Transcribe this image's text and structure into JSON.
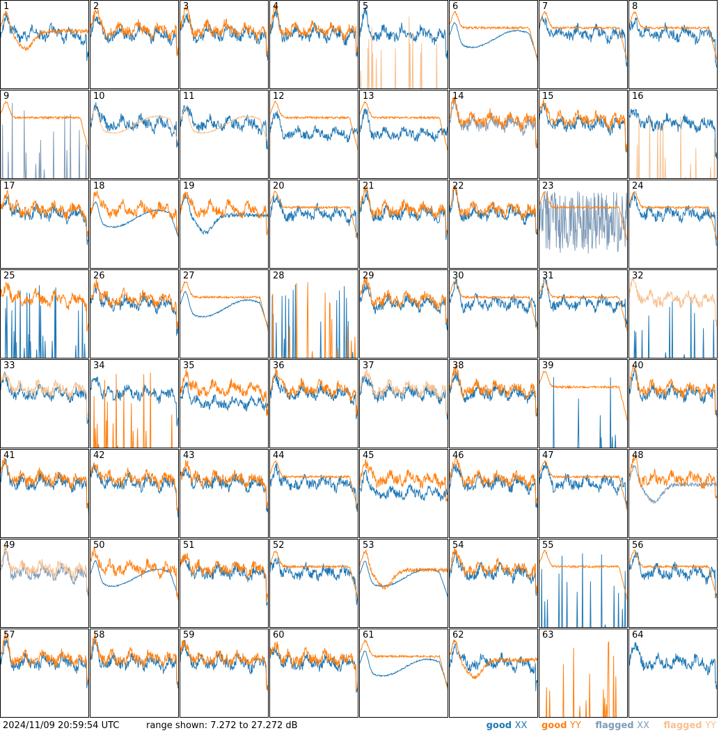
{
  "footer": {
    "timestamp": "2024/11/09 20:59:54 UTC",
    "range_text": "range shown: 7.272 to 27.272 dB"
  },
  "legend": [
    {
      "label": "good",
      "pol": "XX",
      "color": "#1f77b4"
    },
    {
      "label": "good",
      "pol": "YY",
      "color": "#ff7f0e"
    },
    {
      "label": "flagged",
      "pol": "XX",
      "color": "#7f9bb8"
    },
    {
      "label": "flagged",
      "pol": "YY",
      "color": "#f7c08f"
    }
  ],
  "colors": {
    "good_xx": "#1f77b4",
    "good_yy": "#ff7f0e",
    "flagged_xx": "#7f9bb8",
    "flagged_yy": "#f7c08f"
  },
  "chart_data": {
    "type": "line",
    "title": "",
    "xlabel": "",
    "ylabel": "",
    "ylim": [
      7.272,
      27.272
    ],
    "panel_count": 64,
    "grid_layout": "8x8",
    "panels": [
      {
        "id": "1",
        "xx": "good",
        "yy": "good",
        "shape": {
          "xx": "normal",
          "yy": "dip"
        }
      },
      {
        "id": "2",
        "xx": "good",
        "yy": "good",
        "shape": {
          "xx": "normal",
          "yy": "normal"
        }
      },
      {
        "id": "3",
        "xx": "good",
        "yy": "good",
        "shape": {
          "xx": "normal",
          "yy": "normal"
        }
      },
      {
        "id": "4",
        "xx": "good",
        "yy": "good",
        "shape": {
          "xx": "normal",
          "yy": "normal"
        }
      },
      {
        "id": "5",
        "xx": "good",
        "yy": "flagged",
        "shape": {
          "xx": "normal",
          "yy": "spikes"
        }
      },
      {
        "id": "6",
        "xx": "good",
        "yy": "good",
        "shape": {
          "xx": "smooth",
          "yy": "flat"
        }
      },
      {
        "id": "7",
        "xx": "good",
        "yy": "good",
        "shape": {
          "xx": "normal",
          "yy": "flat"
        }
      },
      {
        "id": "8",
        "xx": "good",
        "yy": "good",
        "shape": {
          "xx": "normal",
          "yy": "flat"
        }
      },
      {
        "id": "9",
        "xx": "flagged",
        "yy": "good",
        "shape": {
          "xx": "spikes",
          "yy": "flat"
        }
      },
      {
        "id": "10",
        "xx": "good",
        "yy": "flagged",
        "shape": {
          "xx": "normal",
          "yy": "smooth"
        }
      },
      {
        "id": "11",
        "xx": "good",
        "yy": "flagged",
        "shape": {
          "xx": "normal",
          "yy": "smooth"
        }
      },
      {
        "id": "12",
        "xx": "good",
        "yy": "good",
        "shape": {
          "xx": "low",
          "yy": "flat"
        }
      },
      {
        "id": "13",
        "xx": "good",
        "yy": "good",
        "shape": {
          "xx": "low",
          "yy": "flat"
        }
      },
      {
        "id": "14",
        "xx": "flagged",
        "yy": "good",
        "shape": {
          "xx": "normal",
          "yy": "normal"
        }
      },
      {
        "id": "15",
        "xx": "good",
        "yy": "good",
        "shape": {
          "xx": "normal",
          "yy": "normal"
        }
      },
      {
        "id": "16",
        "xx": "good",
        "yy": "flagged",
        "shape": {
          "xx": "normal",
          "yy": "spikes"
        }
      },
      {
        "id": "17",
        "xx": "good",
        "yy": "good",
        "shape": {
          "xx": "normal",
          "yy": "normal"
        }
      },
      {
        "id": "18",
        "xx": "good",
        "yy": "good",
        "shape": {
          "xx": "smooth",
          "yy": "normal"
        }
      },
      {
        "id": "19",
        "xx": "good",
        "yy": "good",
        "shape": {
          "xx": "dip",
          "yy": "normal"
        }
      },
      {
        "id": "20",
        "xx": "good",
        "yy": "good",
        "shape": {
          "xx": "normal",
          "yy": "flat"
        }
      },
      {
        "id": "21",
        "xx": "good",
        "yy": "good",
        "shape": {
          "xx": "normal",
          "yy": "normal"
        }
      },
      {
        "id": "22",
        "xx": "good",
        "yy": "good",
        "shape": {
          "xx": "normal",
          "yy": "normal"
        }
      },
      {
        "id": "23",
        "xx": "flagged",
        "yy": "good",
        "shape": {
          "xx": "noise",
          "yy": "flat"
        }
      },
      {
        "id": "24",
        "xx": "good",
        "yy": "good",
        "shape": {
          "xx": "normal",
          "yy": "flat"
        }
      },
      {
        "id": "25",
        "xx": "good",
        "yy": "good",
        "shape": {
          "xx": "spikes",
          "yy": "normal"
        }
      },
      {
        "id": "26",
        "xx": "good",
        "yy": "good",
        "shape": {
          "xx": "normal",
          "yy": "normal"
        }
      },
      {
        "id": "27",
        "xx": "good",
        "yy": "good",
        "shape": {
          "xx": "smooth",
          "yy": "flat"
        }
      },
      {
        "id": "28",
        "xx": "good",
        "yy": "good",
        "shape": {
          "xx": "spikes",
          "yy": "spikes"
        }
      },
      {
        "id": "29",
        "xx": "good",
        "yy": "good",
        "shape": {
          "xx": "normal",
          "yy": "normal"
        }
      },
      {
        "id": "30",
        "xx": "good",
        "yy": "good",
        "shape": {
          "xx": "normal",
          "yy": "flat"
        }
      },
      {
        "id": "31",
        "xx": "good",
        "yy": "good",
        "shape": {
          "xx": "normal",
          "yy": "flat"
        }
      },
      {
        "id": "32",
        "xx": "good",
        "yy": "flagged",
        "shape": {
          "xx": "spikes",
          "yy": "normal"
        }
      },
      {
        "id": "33",
        "xx": "good",
        "yy": "flagged",
        "shape": {
          "xx": "normal",
          "yy": "normal"
        }
      },
      {
        "id": "34",
        "xx": "good",
        "yy": "good",
        "shape": {
          "xx": "normal",
          "yy": "spikes"
        }
      },
      {
        "id": "35",
        "xx": "good",
        "yy": "good",
        "shape": {
          "xx": "low",
          "yy": "normal"
        }
      },
      {
        "id": "36",
        "xx": "good",
        "yy": "good",
        "shape": {
          "xx": "normal",
          "yy": "normal"
        }
      },
      {
        "id": "37",
        "xx": "good",
        "yy": "flagged",
        "shape": {
          "xx": "normal",
          "yy": "normal"
        }
      },
      {
        "id": "38",
        "xx": "good",
        "yy": "good",
        "shape": {
          "xx": "normal",
          "yy": "normal"
        }
      },
      {
        "id": "39",
        "xx": "good",
        "yy": "good",
        "shape": {
          "xx": "spikes",
          "yy": "flat"
        }
      },
      {
        "id": "40",
        "xx": "good",
        "yy": "good",
        "shape": {
          "xx": "normal",
          "yy": "normal"
        }
      },
      {
        "id": "41",
        "xx": "good",
        "yy": "good",
        "shape": {
          "xx": "normal",
          "yy": "normal"
        }
      },
      {
        "id": "42",
        "xx": "good",
        "yy": "good",
        "shape": {
          "xx": "normal",
          "yy": "normal"
        }
      },
      {
        "id": "43",
        "xx": "good",
        "yy": "good",
        "shape": {
          "xx": "normal",
          "yy": "normal"
        }
      },
      {
        "id": "44",
        "xx": "good",
        "yy": "good",
        "shape": {
          "xx": "normal",
          "yy": "flat"
        }
      },
      {
        "id": "45",
        "xx": "good",
        "yy": "good",
        "shape": {
          "xx": "low",
          "yy": "normal"
        }
      },
      {
        "id": "46",
        "xx": "good",
        "yy": "good",
        "shape": {
          "xx": "normal",
          "yy": "normal"
        }
      },
      {
        "id": "47",
        "xx": "good",
        "yy": "good",
        "shape": {
          "xx": "normal",
          "yy": "flat"
        }
      },
      {
        "id": "48",
        "xx": "flagged",
        "yy": "good",
        "shape": {
          "xx": "dip",
          "yy": "normal"
        }
      },
      {
        "id": "49",
        "xx": "flagged",
        "yy": "flagged",
        "shape": {
          "xx": "normal",
          "yy": "normal"
        }
      },
      {
        "id": "50",
        "xx": "good",
        "yy": "good",
        "shape": {
          "xx": "smooth",
          "yy": "normal"
        }
      },
      {
        "id": "51",
        "xx": "good",
        "yy": "good",
        "shape": {
          "xx": "normal",
          "yy": "normal"
        }
      },
      {
        "id": "52",
        "xx": "good",
        "yy": "good",
        "shape": {
          "xx": "normal",
          "yy": "flat"
        }
      },
      {
        "id": "53",
        "xx": "good",
        "yy": "good",
        "shape": {
          "xx": "smooth",
          "yy": "dip"
        }
      },
      {
        "id": "54",
        "xx": "good",
        "yy": "good",
        "shape": {
          "xx": "normal",
          "yy": "normal"
        }
      },
      {
        "id": "55",
        "xx": "good",
        "yy": "good",
        "shape": {
          "xx": "spikes",
          "yy": "flat"
        }
      },
      {
        "id": "56",
        "xx": "good",
        "yy": "good",
        "shape": {
          "xx": "normal",
          "yy": "flat"
        }
      },
      {
        "id": "57",
        "xx": "good",
        "yy": "good",
        "shape": {
          "xx": "normal",
          "yy": "normal"
        }
      },
      {
        "id": "58",
        "xx": "good",
        "yy": "good",
        "shape": {
          "xx": "normal",
          "yy": "normal"
        }
      },
      {
        "id": "59",
        "xx": "good",
        "yy": "good",
        "shape": {
          "xx": "normal",
          "yy": "normal"
        }
      },
      {
        "id": "60",
        "xx": "good",
        "yy": "good",
        "shape": {
          "xx": "normal",
          "yy": "normal"
        }
      },
      {
        "id": "61",
        "xx": "good",
        "yy": "good",
        "shape": {
          "xx": "smooth",
          "yy": "flat"
        }
      },
      {
        "id": "62",
        "xx": "good",
        "yy": "good",
        "shape": {
          "xx": "normal",
          "yy": "dip"
        }
      },
      {
        "id": "63",
        "xx": "good",
        "yy": "good",
        "shape": {
          "xx": "none",
          "yy": "spikes"
        }
      },
      {
        "id": "64",
        "xx": "good",
        "yy": "none",
        "shape": {
          "xx": "normal",
          "yy": "none"
        }
      }
    ]
  }
}
